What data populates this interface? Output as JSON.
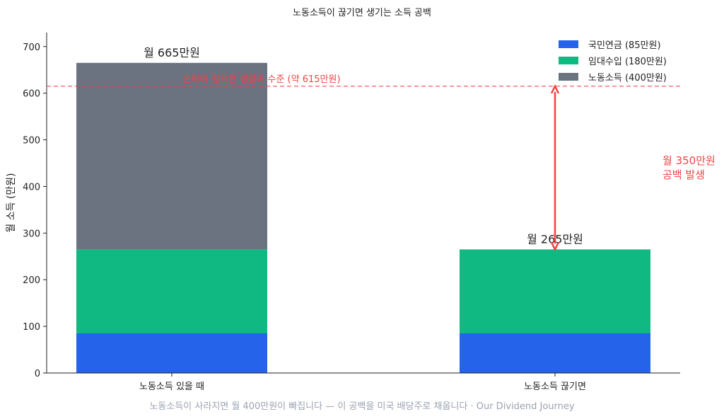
{
  "chart_data": {
    "type": "bar",
    "stacked": true,
    "title": "노동소득이 끊기면 생기는 소득 공백",
    "ylabel": "월 소득 (만원)",
    "xlabel": "",
    "ylim": [
      0,
      730
    ],
    "yticks": [
      0,
      100,
      200,
      300,
      400,
      500,
      600,
      700
    ],
    "categories": [
      "노동소득 있을 때",
      "노동소득 끊기면"
    ],
    "series": [
      {
        "name": "국민연금 (85만원)",
        "values": [
          85,
          85
        ],
        "color": "#2563eb"
      },
      {
        "name": "임대수입 (180만원)",
        "values": [
          180,
          180
        ],
        "color": "#10b981"
      },
      {
        "name": "노동소득 (400만원)",
        "values": [
          400,
          0
        ],
        "color": "#6b7280"
      }
    ],
    "total_labels": [
      "월 665만원",
      "월 265만원"
    ],
    "reference_line": {
      "value": 615,
      "label": "은퇴에 필요한 생활비 수준 (약 615만원)",
      "color": "#ef4444"
    },
    "gap_annotation": {
      "from": 265,
      "to": 615,
      "lines": [
        "월 350만원",
        "공백 발생"
      ],
      "color": "#ef4444"
    },
    "legend_position": "top-right",
    "grid": false
  },
  "caption": "노동소득이 사라지면 월 400만원이 빠집니다 — 이 공백을 미국 배당주로 채웁니다 · Our Dividend Journey"
}
